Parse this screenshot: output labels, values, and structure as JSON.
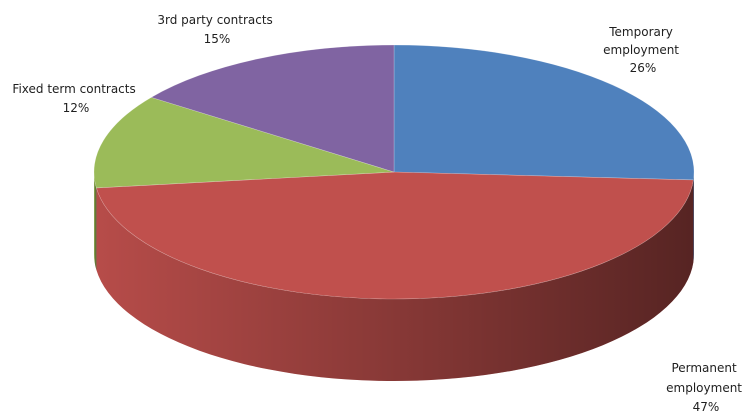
{
  "chart_data": {
    "type": "pie",
    "title": "",
    "slices": [
      {
        "label": "Temporary employment",
        "value": 26,
        "percent_text": "26%",
        "color": "#4f81bd",
        "side_color": "#385d8a"
      },
      {
        "label": "Permanent employment",
        "value": 47,
        "percent_text": "47%",
        "color": "#c0504d",
        "side_color": "#8c3836"
      },
      {
        "label": "Fixed term contracts",
        "value": 12,
        "percent_text": "12%",
        "color": "#9bbb59",
        "side_color": "#71893f"
      },
      {
        "label": "3rd party contracts",
        "value": 15,
        "percent_text": "15%",
        "color": "#8064a2",
        "side_color": "#5c4776"
      }
    ],
    "data_labels": [
      {
        "lines": [
          "Temporary",
          "employment"
        ],
        "percent_text": "26%"
      },
      {
        "lines": [
          "Permanent",
          "employment"
        ],
        "percent_text": "47%"
      },
      {
        "lines": [
          "Fixed term contracts"
        ],
        "percent_text": "12%"
      },
      {
        "lines": [
          "3rd party contracts"
        ],
        "percent_text": "15%"
      }
    ],
    "style": "3d",
    "legend": "none"
  }
}
